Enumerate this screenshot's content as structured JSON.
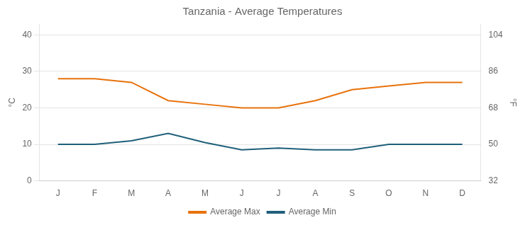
{
  "chart_data": {
    "type": "line",
    "title": "Tanzania - Average Temperatures",
    "categories": [
      "J",
      "F",
      "M",
      "A",
      "M",
      "J",
      "J",
      "A",
      "S",
      "O",
      "N",
      "D"
    ],
    "series": [
      {
        "name": "Average Max",
        "color": "#E8720C",
        "values": [
          28,
          28,
          27,
          22,
          21,
          20,
          20,
          22,
          25,
          26,
          27,
          27
        ]
      },
      {
        "name": "Average Min",
        "color": "#1F5F7A",
        "values": [
          10,
          10,
          11,
          13,
          10.5,
          8.5,
          9,
          8.5,
          8.5,
          10,
          10,
          10
        ]
      }
    ],
    "ylabel": "°C",
    "y2label": "°F",
    "ylim": [
      0,
      43
    ],
    "yticks": [
      0,
      10,
      20,
      30,
      40
    ],
    "y2lim": [
      32,
      109.4
    ],
    "y2ticks": [
      32,
      50,
      68,
      86,
      104
    ],
    "grid": true,
    "legend": "bottom"
  }
}
